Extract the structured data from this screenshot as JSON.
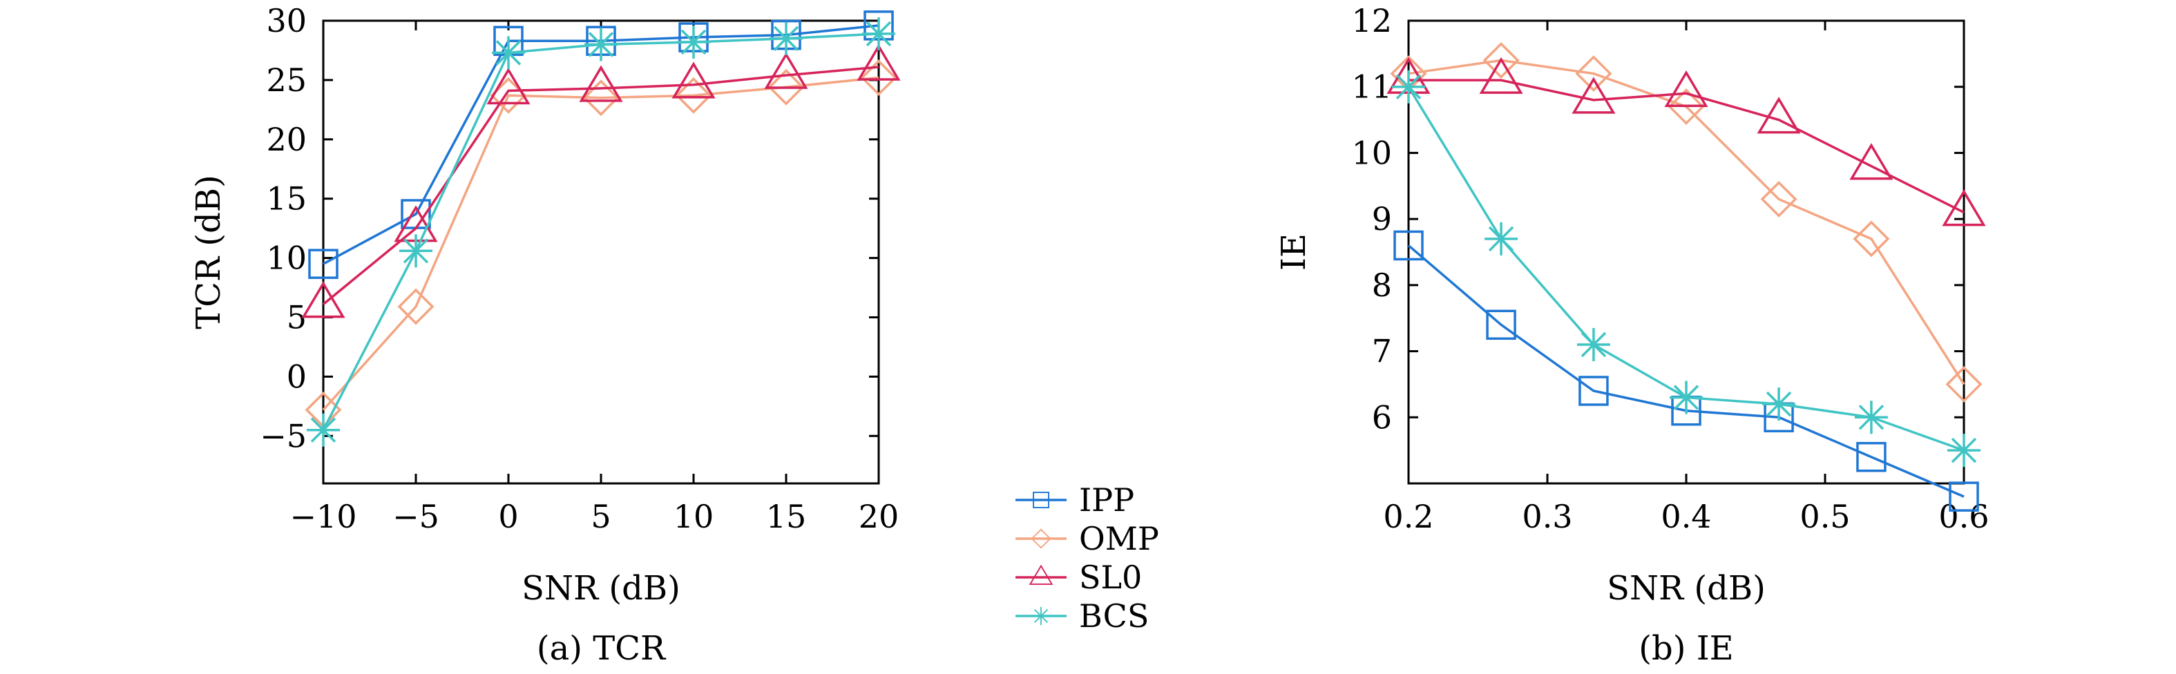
{
  "chart_data": [
    {
      "type": "line",
      "caption": "(a) TCR",
      "xlabel": "SNR (dB)",
      "ylabel": "TCR (dB)",
      "x": [
        -10,
        -5,
        0,
        5,
        10,
        15,
        20
      ],
      "xlim": [
        -10,
        20
      ],
      "ylim": [
        -9,
        30
      ],
      "xticks": [
        -10,
        -5,
        0,
        5,
        10,
        15,
        20
      ],
      "xtick_labels": [
        "−10",
        "−5",
        "0",
        "5",
        "10",
        "15",
        "20"
      ],
      "yticks": [
        -5,
        0,
        5,
        10,
        15,
        20,
        25,
        30
      ],
      "ytick_labels": [
        "−5",
        "0",
        "5",
        "10",
        "15",
        "20",
        "25",
        "30"
      ],
      "grid": false,
      "series": [
        {
          "name": "IPP",
          "color": "#1f77d4",
          "marker": "square",
          "values": [
            9.5,
            13.7,
            28.3,
            28.3,
            28.6,
            28.8,
            29.6
          ]
        },
        {
          "name": "OMP",
          "color": "#f4a582",
          "marker": "diamond",
          "values": [
            -2.8,
            5.9,
            23.7,
            23.5,
            23.7,
            24.4,
            25.2
          ]
        },
        {
          "name": "SL0",
          "color": "#d6245a",
          "marker": "triangle",
          "values": [
            6.1,
            12.5,
            24.1,
            24.3,
            24.6,
            25.4,
            26.1
          ]
        },
        {
          "name": "BCS",
          "color": "#40c4c4",
          "marker": "star",
          "values": [
            -4.5,
            10.6,
            27.3,
            28.0,
            28.2,
            28.5,
            28.9
          ]
        }
      ]
    },
    {
      "type": "line",
      "caption": "(b) IE",
      "xlabel": "SNR (dB)",
      "ylabel": "IE",
      "x": [
        0.2,
        0.2667,
        0.3333,
        0.4,
        0.4667,
        0.5333,
        0.6
      ],
      "xlim": [
        0.2,
        0.6
      ],
      "ylim": [
        5,
        12
      ],
      "xticks": [
        0.2,
        0.3,
        0.4,
        0.5,
        0.6
      ],
      "xtick_labels": [
        "0.2",
        "0.3",
        "0.4",
        "0.5",
        "0.6"
      ],
      "yticks": [
        6,
        7,
        8,
        9,
        10,
        11,
        12
      ],
      "ytick_labels": [
        "6",
        "7",
        "8",
        "9",
        "10",
        "11",
        "12"
      ],
      "grid": false,
      "series": [
        {
          "name": "IPP",
          "color": "#1f77d4",
          "marker": "square",
          "values": [
            8.6,
            7.4,
            6.4,
            6.1,
            6.0,
            5.4,
            4.8
          ]
        },
        {
          "name": "OMP",
          "color": "#f4a582",
          "marker": "diamond",
          "values": [
            11.2,
            11.4,
            11.2,
            10.7,
            9.3,
            8.7,
            6.5
          ]
        },
        {
          "name": "SL0",
          "color": "#d6245a",
          "marker": "triangle",
          "values": [
            11.1,
            11.1,
            10.8,
            10.9,
            10.5,
            9.8,
            9.1
          ]
        },
        {
          "name": "BCS",
          "color": "#40c4c4",
          "marker": "star",
          "values": [
            11.0,
            8.7,
            7.1,
            6.3,
            6.2,
            6.0,
            5.5
          ]
        }
      ]
    }
  ],
  "legend": {
    "placement": "between-panels",
    "entries": [
      "IPP",
      "OMP",
      "SL0",
      "BCS"
    ]
  }
}
